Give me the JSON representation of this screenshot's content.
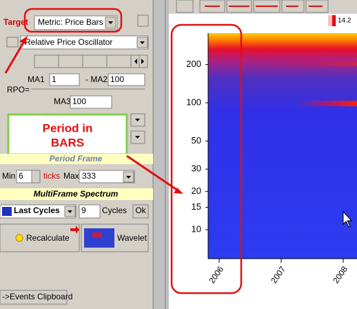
{
  "target_label": "Target",
  "metric_select": "Metric: Price Bars",
  "indicator_select": "Relative Price Oscillator",
  "ma1": {
    "label": "MA1",
    "value": "1"
  },
  "ma2": {
    "label": "- MA2",
    "value": "100"
  },
  "rpo_label": "RPO=",
  "ma3": {
    "label": "MA3",
    "value": "100"
  },
  "callout": {
    "lines": [
      "Period in",
      "BARS"
    ]
  },
  "period_frame": {
    "title": "Period Frame",
    "min_label": "Min",
    "min_value": "6",
    "ticks_label": "ticks",
    "max_label": "Max",
    "max_value": "333"
  },
  "multiframe": {
    "title": "MultiFrame Spectrum",
    "mode_select": "Last Cycles",
    "cycles_value": "9",
    "cycles_label": "Cycles",
    "ok_button": "Ok"
  },
  "recalculate_button": "Recalculate",
  "wavelet_button": "Wavelet",
  "events_tab": "->Events Clipboard",
  "spectrum": {
    "scale_value": "14.2",
    "yticks": [
      200,
      100,
      50,
      30,
      20,
      15,
      10
    ],
    "xticks": [
      2006,
      2007,
      2008
    ]
  }
}
